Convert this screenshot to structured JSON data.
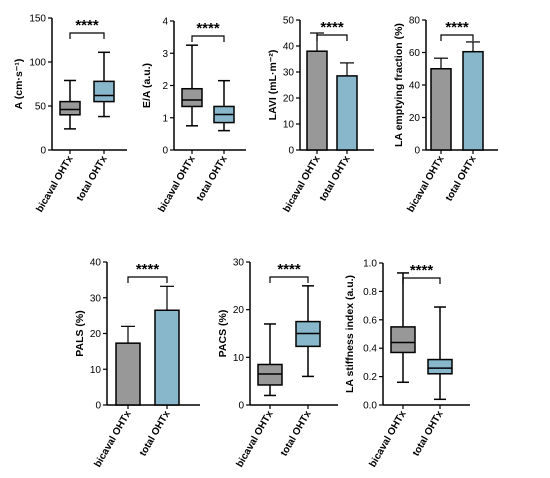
{
  "colors": {
    "gray": "#989898",
    "blue": "#88b7cc",
    "stroke": "#000000"
  },
  "chart_data": [
    {
      "type": "box",
      "ylabel": "A (cm·s⁻¹)",
      "ylim": [
        0,
        150
      ],
      "yticks": [
        0,
        50,
        100,
        150
      ],
      "categories": [
        "bicaval OHTx",
        "total OHTx"
      ],
      "boxes": [
        {
          "min": 24,
          "q1": 40,
          "median": 46,
          "q3": 55,
          "max": 79
        },
        {
          "min": 38,
          "q1": 55,
          "median": 62,
          "q3": 78,
          "max": 111
        }
      ],
      "significance": "****"
    },
    {
      "type": "box",
      "ylabel": "E/A (a.u.)",
      "ylim": [
        0,
        4
      ],
      "yticks": [
        0,
        1,
        2,
        3,
        4
      ],
      "categories": [
        "bicaval OHTx",
        "total OHTx"
      ],
      "boxes": [
        {
          "min": 0.75,
          "q1": 1.35,
          "median": 1.55,
          "q3": 1.9,
          "max": 3.25
        },
        {
          "min": 0.6,
          "q1": 0.85,
          "median": 1.1,
          "q3": 1.35,
          "max": 2.15
        }
      ],
      "significance": "****"
    },
    {
      "type": "bar",
      "ylabel": "LAVI (mL·m⁻²)",
      "ylim": [
        0,
        50
      ],
      "yticks": [
        0,
        10,
        20,
        30,
        40,
        50
      ],
      "categories": [
        "bicaval OHTx",
        "total OHTx"
      ],
      "values": [
        38,
        28.5
      ],
      "errors": [
        45,
        33.5
      ],
      "significance": "****"
    },
    {
      "type": "bar",
      "ylabel": "LA emptying fraction (%)",
      "ylim": [
        0,
        80
      ],
      "yticks": [
        0,
        20,
        40,
        60,
        80
      ],
      "categories": [
        "bicaval OHTx",
        "total OHTx"
      ],
      "values": [
        50,
        60.5
      ],
      "errors": [
        56.5,
        66.5
      ],
      "significance": "****"
    },
    {
      "type": "bar",
      "ylabel": "PALS (%)",
      "ylim": [
        0,
        40
      ],
      "yticks": [
        0,
        10,
        20,
        30,
        40
      ],
      "categories": [
        "bicaval OHTx",
        "total OHTx"
      ],
      "values": [
        17.3,
        26.5
      ],
      "errors": [
        22,
        33.2
      ],
      "significance": "****"
    },
    {
      "type": "box",
      "ylabel": "PACS (%)",
      "ylim": [
        0,
        30
      ],
      "yticks": [
        0,
        10,
        20,
        30
      ],
      "categories": [
        "bicaval OHTx",
        "total OHTx"
      ],
      "boxes": [
        {
          "min": 2,
          "q1": 4.2,
          "median": 6.5,
          "q3": 8.5,
          "max": 17
        },
        {
          "min": 6,
          "q1": 12.3,
          "median": 15,
          "q3": 17.5,
          "max": 25
        }
      ],
      "significance": "****"
    },
    {
      "type": "box",
      "ylabel": "LA stiffness index (a.u.)",
      "ylim": [
        0,
        1.0
      ],
      "yticks": [
        0.0,
        0.2,
        0.4,
        0.6,
        0.8,
        1.0
      ],
      "ytick_labels": [
        "0.0",
        "0.2",
        "0.4",
        "0.6",
        "0.8",
        "1.0"
      ],
      "categories": [
        "bicaval OHTx",
        "total OHTx"
      ],
      "boxes": [
        {
          "min": 0.16,
          "q1": 0.37,
          "median": 0.44,
          "q3": 0.55,
          "max": 0.93
        },
        {
          "min": 0.04,
          "q1": 0.22,
          "median": 0.26,
          "q3": 0.32,
          "max": 0.69
        }
      ],
      "significance": "****"
    }
  ]
}
